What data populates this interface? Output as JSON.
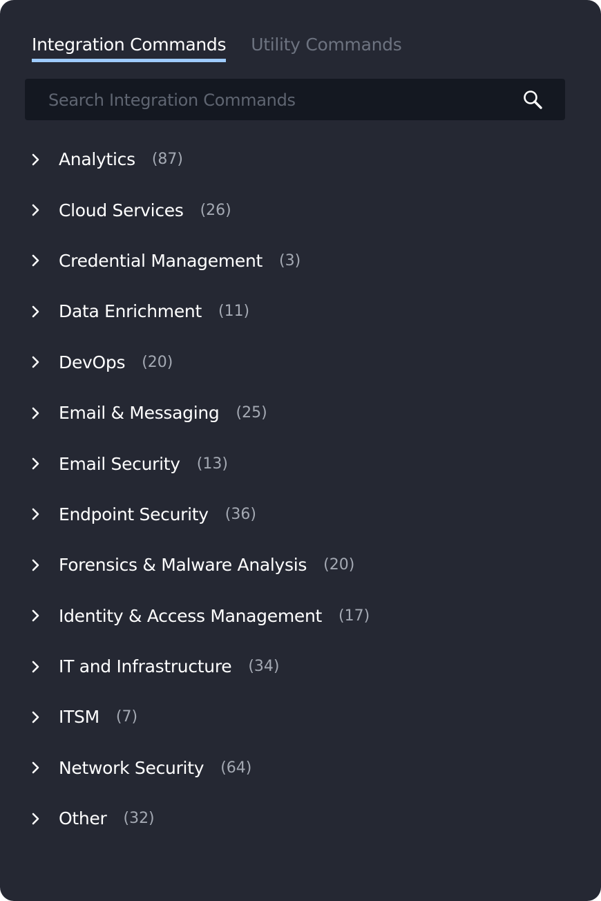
{
  "tabs": [
    {
      "label": "Integration Commands",
      "active": true
    },
    {
      "label": "Utility Commands",
      "active": false
    }
  ],
  "search": {
    "placeholder": "Search Integration Commands",
    "value": "",
    "icon": "search-icon"
  },
  "accent_color": "#9ecbff",
  "categories": [
    {
      "label": "Analytics",
      "count": "(87)"
    },
    {
      "label": "Cloud Services",
      "count": "(26)"
    },
    {
      "label": "Credential Management",
      "count": "(3)"
    },
    {
      "label": "Data Enrichment",
      "count": "(11)"
    },
    {
      "label": "DevOps",
      "count": "(20)"
    },
    {
      "label": "Email & Messaging",
      "count": "(25)"
    },
    {
      "label": "Email Security",
      "count": "(13)"
    },
    {
      "label": "Endpoint Security",
      "count": "(36)"
    },
    {
      "label": "Forensics & Malware Analysis",
      "count": "(20)"
    },
    {
      "label": "Identity & Access Management",
      "count": "(17)"
    },
    {
      "label": "IT and Infrastructure",
      "count": "(34)"
    },
    {
      "label": "ITSM",
      "count": "(7)"
    },
    {
      "label": "Network Security",
      "count": "(64)"
    },
    {
      "label": "Other",
      "count": "(32)"
    }
  ]
}
